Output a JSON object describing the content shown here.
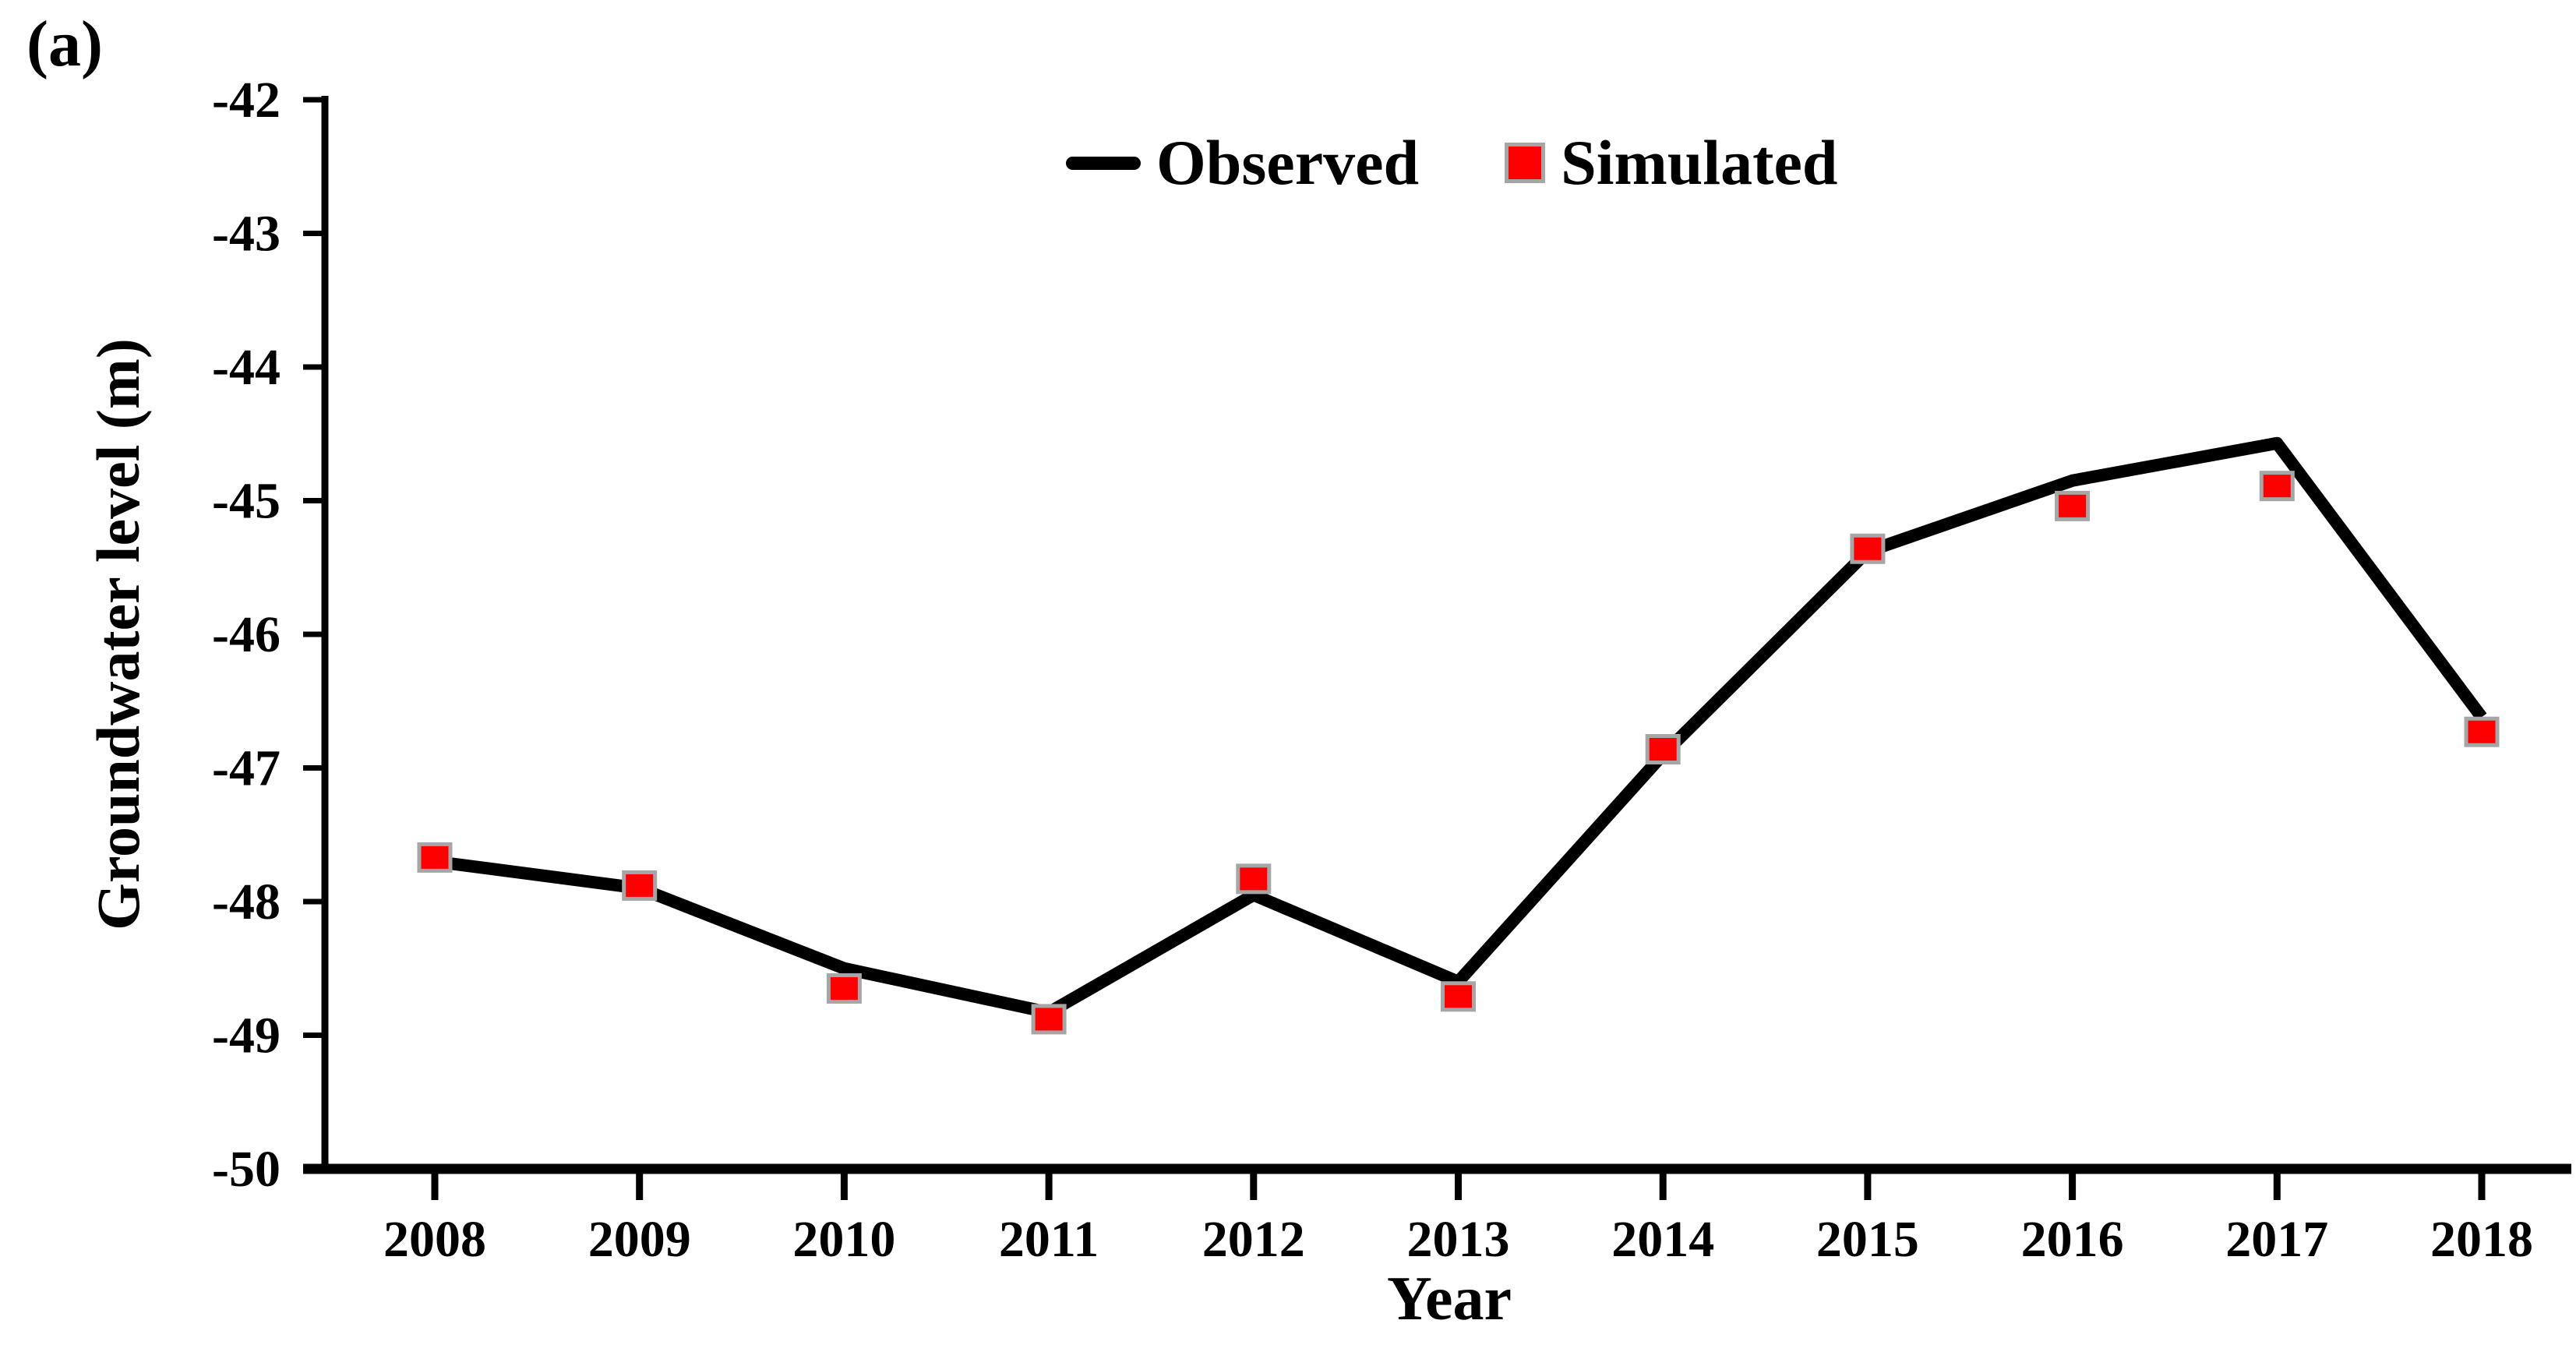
{
  "chart_data": {
    "type": "line",
    "panel_label": "(a)",
    "xlabel": "Year",
    "ylabel": "Groundwater level (m)",
    "ylim": [
      -50,
      -42
    ],
    "y_ticks": [
      -42,
      -43,
      -44,
      -45,
      -46,
      -47,
      -48,
      -49,
      -50
    ],
    "x": [
      2008,
      2009,
      2010,
      2011,
      2012,
      2013,
      2014,
      2015,
      2016,
      2017,
      2018
    ],
    "series": [
      {
        "name": "Observed",
        "type": "line",
        "color": "#000000",
        "values": [
          -47.7,
          -47.9,
          -48.5,
          -48.83,
          -47.95,
          -48.6,
          -46.9,
          -45.38,
          -44.85,
          -44.57,
          -46.62
        ]
      },
      {
        "name": "Simulated",
        "type": "scatter",
        "color": "#ff0000",
        "marker_border": "#a6a6a6",
        "values": [
          -47.67,
          -47.88,
          -48.65,
          -48.88,
          -47.83,
          -48.71,
          -46.86,
          -45.36,
          -45.04,
          -44.89,
          -46.73
        ]
      }
    ],
    "legend_position": "top-center",
    "grid": "off",
    "axis_color": "#000000"
  }
}
